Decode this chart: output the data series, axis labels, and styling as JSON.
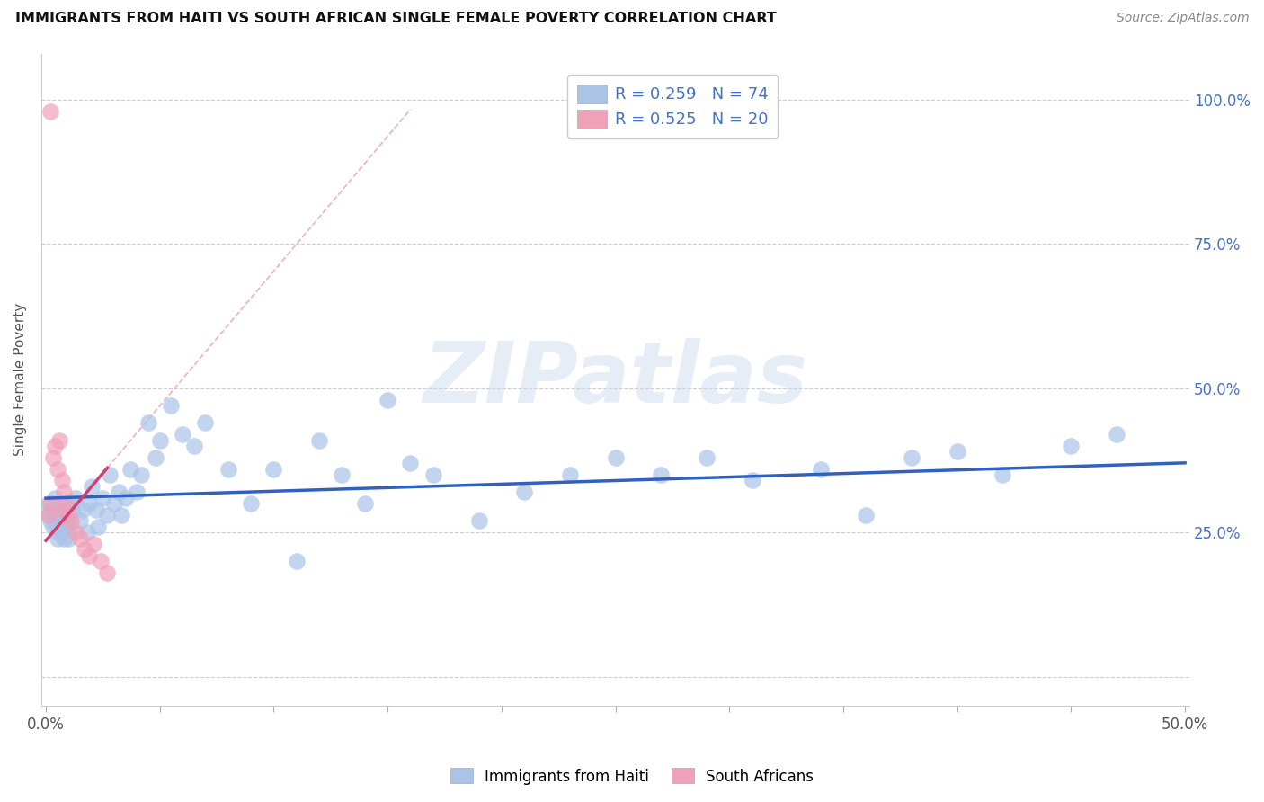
{
  "title": "IMMIGRANTS FROM HAITI VS SOUTH AFRICAN SINGLE FEMALE POVERTY CORRELATION CHART",
  "source": "Source: ZipAtlas.com",
  "ylabel": "Single Female Poverty",
  "watermark": "ZIPatlas",
  "xlim": [
    -0.002,
    0.502
  ],
  "ylim": [
    -0.05,
    1.08
  ],
  "haiti_color": "#aac4e8",
  "sa_color": "#f0a0b8",
  "haiti_trend_color": "#3060c0",
  "sa_trend_color": "#d04070",
  "sa_dashed_color": "#e08090",
  "R_N_color": "#4472c4",
  "haiti_R": 0.259,
  "haiti_N": 74,
  "sa_R": 0.525,
  "sa_N": 20,
  "haiti_x": [
    0.001,
    0.001,
    0.002,
    0.002,
    0.003,
    0.003,
    0.003,
    0.004,
    0.004,
    0.005,
    0.005,
    0.005,
    0.006,
    0.006,
    0.006,
    0.007,
    0.007,
    0.008,
    0.008,
    0.009,
    0.009,
    0.01,
    0.01,
    0.011,
    0.012,
    0.013,
    0.015,
    0.016,
    0.018,
    0.019,
    0.02,
    0.022,
    0.023,
    0.025,
    0.027,
    0.028,
    0.03,
    0.032,
    0.033,
    0.035,
    0.037,
    0.04,
    0.042,
    0.045,
    0.048,
    0.05,
    0.055,
    0.06,
    0.065,
    0.07,
    0.08,
    0.09,
    0.1,
    0.11,
    0.12,
    0.13,
    0.14,
    0.15,
    0.16,
    0.17,
    0.19,
    0.21,
    0.23,
    0.25,
    0.27,
    0.29,
    0.31,
    0.34,
    0.36,
    0.38,
    0.4,
    0.42,
    0.45,
    0.47
  ],
  "haiti_y": [
    0.28,
    0.3,
    0.27,
    0.29,
    0.26,
    0.3,
    0.28,
    0.27,
    0.31,
    0.25,
    0.28,
    0.24,
    0.27,
    0.29,
    0.26,
    0.3,
    0.25,
    0.24,
    0.28,
    0.26,
    0.27,
    0.24,
    0.26,
    0.3,
    0.29,
    0.31,
    0.27,
    0.29,
    0.25,
    0.3,
    0.33,
    0.29,
    0.26,
    0.31,
    0.28,
    0.35,
    0.3,
    0.32,
    0.28,
    0.31,
    0.36,
    0.32,
    0.35,
    0.44,
    0.38,
    0.41,
    0.47,
    0.42,
    0.4,
    0.44,
    0.36,
    0.3,
    0.36,
    0.2,
    0.41,
    0.35,
    0.3,
    0.48,
    0.37,
    0.35,
    0.27,
    0.32,
    0.35,
    0.38,
    0.35,
    0.38,
    0.34,
    0.36,
    0.28,
    0.38,
    0.39,
    0.35,
    0.4,
    0.42
  ],
  "sa_x": [
    0.001,
    0.002,
    0.003,
    0.004,
    0.005,
    0.006,
    0.007,
    0.007,
    0.008,
    0.009,
    0.01,
    0.011,
    0.013,
    0.015,
    0.017,
    0.019,
    0.021,
    0.024,
    0.027,
    0.002
  ],
  "sa_y": [
    0.28,
    0.3,
    0.38,
    0.4,
    0.36,
    0.41,
    0.29,
    0.34,
    0.32,
    0.3,
    0.28,
    0.27,
    0.25,
    0.24,
    0.22,
    0.21,
    0.23,
    0.2,
    0.18,
    0.98
  ]
}
